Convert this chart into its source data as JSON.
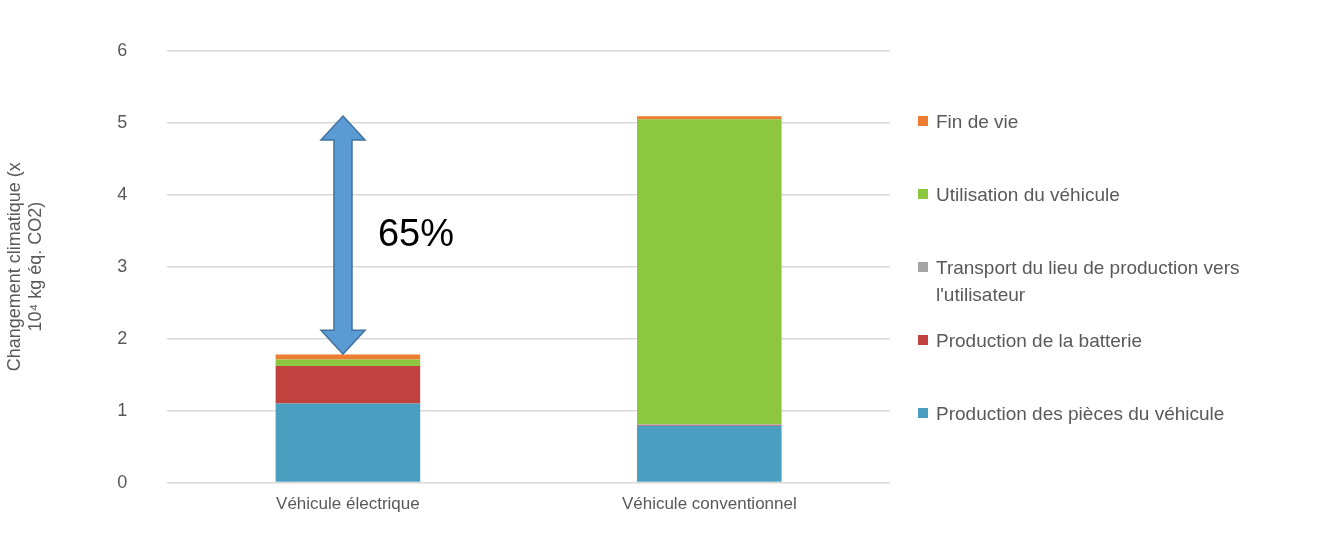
{
  "chart_data": {
    "type": "bar",
    "stacked": true,
    "ylabel": "Changement climatique (x 10⁴ kg éq. CO2)",
    "categories": [
      "Véhicule électrique",
      "Véhicule conventionnel"
    ],
    "series": [
      {
        "name": "Production des pièces du véhicule",
        "color": "#4a9fc0",
        "values": [
          1.1,
          0.79
        ]
      },
      {
        "name": "Production de la batterie",
        "color": "#c0413e",
        "values": [
          0.52,
          0.01
        ]
      },
      {
        "name": "Transport du lieu de production vers l'utilisateur",
        "color": "#a5a5a5",
        "values": [
          null,
          0.01
        ]
      },
      {
        "name": "Utilisation du véhicule",
        "color": "#8dc63f",
        "values": [
          0.09,
          4.24
        ]
      },
      {
        "name": "Fin de vie",
        "color": "#ed7d31",
        "values": [
          0.07,
          0.04
        ]
      }
    ],
    "ylim": [
      0,
      6
    ],
    "yticks": [
      0,
      1,
      2,
      3,
      4,
      5,
      6
    ],
    "grid": "y",
    "legend": "right",
    "annotations": [
      "65%"
    ]
  }
}
